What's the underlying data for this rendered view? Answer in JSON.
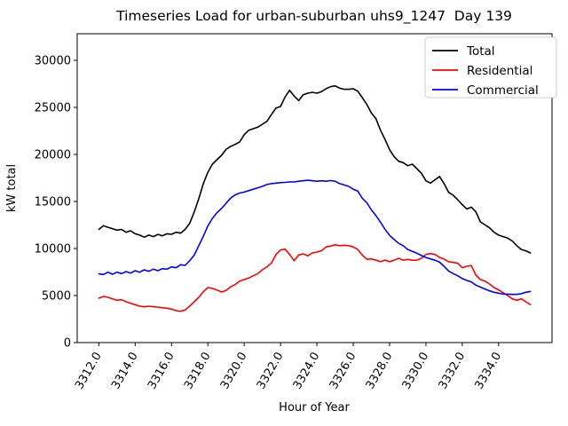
{
  "title": "Timeseries Load for urban-suburban uhs9_1247  Day 139",
  "chart_data": {
    "type": "line",
    "title": "Timeseries Load for urban-suburban uhs9_1247  Day 139",
    "xlabel": "Hour of Year",
    "ylabel": "kW total",
    "grid": false,
    "legend_position": "upper right",
    "xlim": [
      3310.81,
      3336.94
    ],
    "ylim": [
      0,
      32830
    ],
    "xtick_values": [
      3312,
      3314,
      3316,
      3318,
      3320,
      3322,
      3324,
      3326,
      3328,
      3330,
      3332,
      3334
    ],
    "xtick_labels": [
      "3312.0",
      "3314.0",
      "3316.0",
      "3318.0",
      "3320.0",
      "3322.0",
      "3324.0",
      "3326.0",
      "3328.0",
      "3330.0",
      "3332.0",
      "3334.0"
    ],
    "xtick_rotation": 60,
    "ytick_values": [
      0,
      5000,
      10000,
      15000,
      20000,
      25000,
      30000
    ],
    "ytick_labels": [
      "0",
      "5000",
      "10000",
      "15000",
      "20000",
      "25000",
      "30000"
    ],
    "x": [
      3312.0,
      3312.25,
      3312.5,
      3312.75,
      3313.0,
      3313.25,
      3313.5,
      3313.75,
      3314.0,
      3314.25,
      3314.5,
      3314.75,
      3315.0,
      3315.25,
      3315.5,
      3315.75,
      3316.0,
      3316.25,
      3316.5,
      3316.75,
      3317.0,
      3317.25,
      3317.5,
      3317.75,
      3318.0,
      3318.25,
      3318.5,
      3318.75,
      3319.0,
      3319.25,
      3319.5,
      3319.75,
      3320.0,
      3320.25,
      3320.5,
      3320.75,
      3321.0,
      3321.25,
      3321.5,
      3321.75,
      3322.0,
      3322.25,
      3322.5,
      3322.75,
      3323.0,
      3323.25,
      3323.5,
      3323.75,
      3324.0,
      3324.25,
      3324.5,
      3324.75,
      3325.0,
      3325.25,
      3325.5,
      3325.75,
      3326.0,
      3326.25,
      3326.5,
      3326.75,
      3327.0,
      3327.25,
      3327.5,
      3327.75,
      3328.0,
      3328.25,
      3328.5,
      3328.75,
      3329.0,
      3329.25,
      3329.5,
      3329.75,
      3330.0,
      3330.25,
      3330.5,
      3330.75,
      3331.0,
      3331.25,
      3331.5,
      3331.75,
      3332.0,
      3332.25,
      3332.5,
      3332.75,
      3333.0,
      3333.25,
      3333.5,
      3333.75,
      3334.0,
      3334.25,
      3334.5,
      3334.75,
      3335.0,
      3335.25,
      3335.5,
      3335.75
    ],
    "series": [
      {
        "name": "Total",
        "color": "#000000",
        "values": [
          12030,
          12420,
          12250,
          12100,
          11950,
          12030,
          11730,
          11890,
          11570,
          11420,
          11200,
          11420,
          11260,
          11500,
          11350,
          11570,
          11510,
          11730,
          11630,
          12030,
          12670,
          13900,
          15300,
          16900,
          18100,
          18960,
          19430,
          19910,
          20540,
          20850,
          21070,
          21320,
          22100,
          22580,
          22740,
          22900,
          23210,
          23520,
          24250,
          24930,
          25090,
          26100,
          26820,
          26200,
          25730,
          26350,
          26510,
          26600,
          26510,
          26670,
          26980,
          27200,
          27290,
          27050,
          26920,
          26920,
          26980,
          26730,
          26040,
          25300,
          24400,
          23800,
          22580,
          21600,
          20500,
          19750,
          19270,
          19120,
          18800,
          18960,
          18490,
          18000,
          17200,
          16950,
          17300,
          17650,
          16900,
          15970,
          15660,
          15190,
          14650,
          14200,
          14400,
          13900,
          12830,
          12520,
          12200,
          11730,
          11420,
          11260,
          11100,
          10800,
          10300,
          9900,
          9750,
          9530
        ]
      },
      {
        "name": "Residential",
        "color": "#ff0000",
        "values": [
          4720,
          4900,
          4810,
          4650,
          4500,
          4560,
          4340,
          4180,
          4030,
          3870,
          3800,
          3870,
          3800,
          3770,
          3710,
          3650,
          3560,
          3400,
          3330,
          3460,
          3870,
          4340,
          4810,
          5400,
          5850,
          5760,
          5590,
          5380,
          5540,
          5920,
          6160,
          6540,
          6700,
          6860,
          7100,
          7330,
          7740,
          8050,
          8450,
          9370,
          9840,
          9930,
          9370,
          8700,
          9310,
          9430,
          9220,
          9530,
          9620,
          9750,
          10160,
          10250,
          10400,
          10300,
          10350,
          10300,
          10160,
          9900,
          9300,
          8850,
          8900,
          8750,
          8600,
          8750,
          8600,
          8750,
          8960,
          8750,
          8840,
          8750,
          8750,
          8960,
          9370,
          9460,
          9370,
          9060,
          8870,
          8590,
          8520,
          8430,
          7950,
          8110,
          8180,
          7170,
          6700,
          6540,
          6230,
          5850,
          5600,
          5300,
          5000,
          4650,
          4500,
          4650,
          4340,
          4030
        ]
      },
      {
        "name": "Commercial",
        "color": "#0000ff",
        "values": [
          7300,
          7240,
          7480,
          7260,
          7480,
          7330,
          7550,
          7390,
          7640,
          7480,
          7740,
          7580,
          7800,
          7640,
          7860,
          7800,
          8050,
          7950,
          8270,
          8210,
          8700,
          9300,
          10300,
          11300,
          12400,
          13200,
          13800,
          14250,
          14800,
          15350,
          15700,
          15900,
          16000,
          16150,
          16300,
          16450,
          16600,
          16800,
          16900,
          16950,
          17000,
          17030,
          17080,
          17080,
          17150,
          17200,
          17250,
          17200,
          17150,
          17200,
          17150,
          17220,
          17150,
          16900,
          16750,
          16600,
          16300,
          16100,
          15350,
          14850,
          14100,
          13500,
          12800,
          12050,
          11400,
          10950,
          10550,
          10300,
          9900,
          9700,
          9500,
          9250,
          9050,
          8900,
          8750,
          8550,
          8100,
          7600,
          7330,
          7100,
          6800,
          6600,
          6450,
          6100,
          5900,
          5700,
          5500,
          5350,
          5250,
          5150,
          5150,
          5120,
          5120,
          5200,
          5350,
          5430
        ]
      }
    ]
  }
}
